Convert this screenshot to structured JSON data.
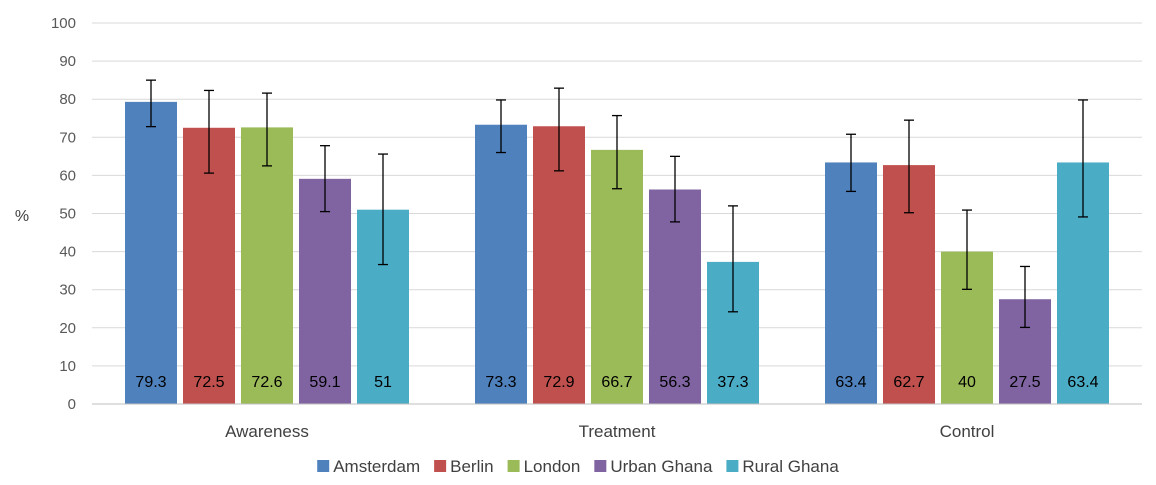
{
  "chart_data": {
    "type": "bar",
    "ylabel": "%",
    "ylim": [
      0,
      100
    ],
    "ytick_step": 10,
    "categories": [
      "Awareness",
      "Treatment",
      "Control"
    ],
    "grid": true,
    "legend_position": "bottom",
    "series": [
      {
        "name": "Amsterdam",
        "color": "#4F81BD",
        "values": [
          79.3,
          73.3,
          63.4
        ],
        "error_low": [
          72.8,
          66,
          55.8
        ],
        "error_high": [
          85,
          79.8,
          70.8
        ]
      },
      {
        "name": "Berlin",
        "color": "#C0504D",
        "values": [
          72.5,
          72.9,
          62.7
        ],
        "error_low": [
          60.6,
          61.2,
          50.2
        ],
        "error_high": [
          82.3,
          82.9,
          74.5
        ]
      },
      {
        "name": "London",
        "color": "#9BBB59",
        "values": [
          72.6,
          66.7,
          40
        ],
        "error_low": [
          62.5,
          56.5,
          30.1
        ],
        "error_high": [
          81.6,
          75.7,
          50.9
        ]
      },
      {
        "name": "Urban Ghana",
        "color": "#8064A2",
        "values": [
          59.1,
          56.3,
          27.5
        ],
        "error_low": [
          50.5,
          47.8,
          20.1
        ],
        "error_high": [
          67.8,
          65,
          36.1
        ]
      },
      {
        "name": "Rural Ghana",
        "color": "#4BACC6",
        "values": [
          51,
          37.3,
          63.4
        ],
        "error_low": [
          36.6,
          24.2,
          49.1
        ],
        "error_high": [
          65.6,
          52,
          79.8
        ]
      }
    ],
    "data_labels": [
      [
        "79.3",
        "73.3",
        "63.4"
      ],
      [
        "72.5",
        "72.9",
        "62.7"
      ],
      [
        "72.6",
        "66.7",
        "40"
      ],
      [
        "59.1",
        "56.3",
        "27.5"
      ],
      [
        "51",
        "37.3",
        "63.4"
      ]
    ]
  }
}
